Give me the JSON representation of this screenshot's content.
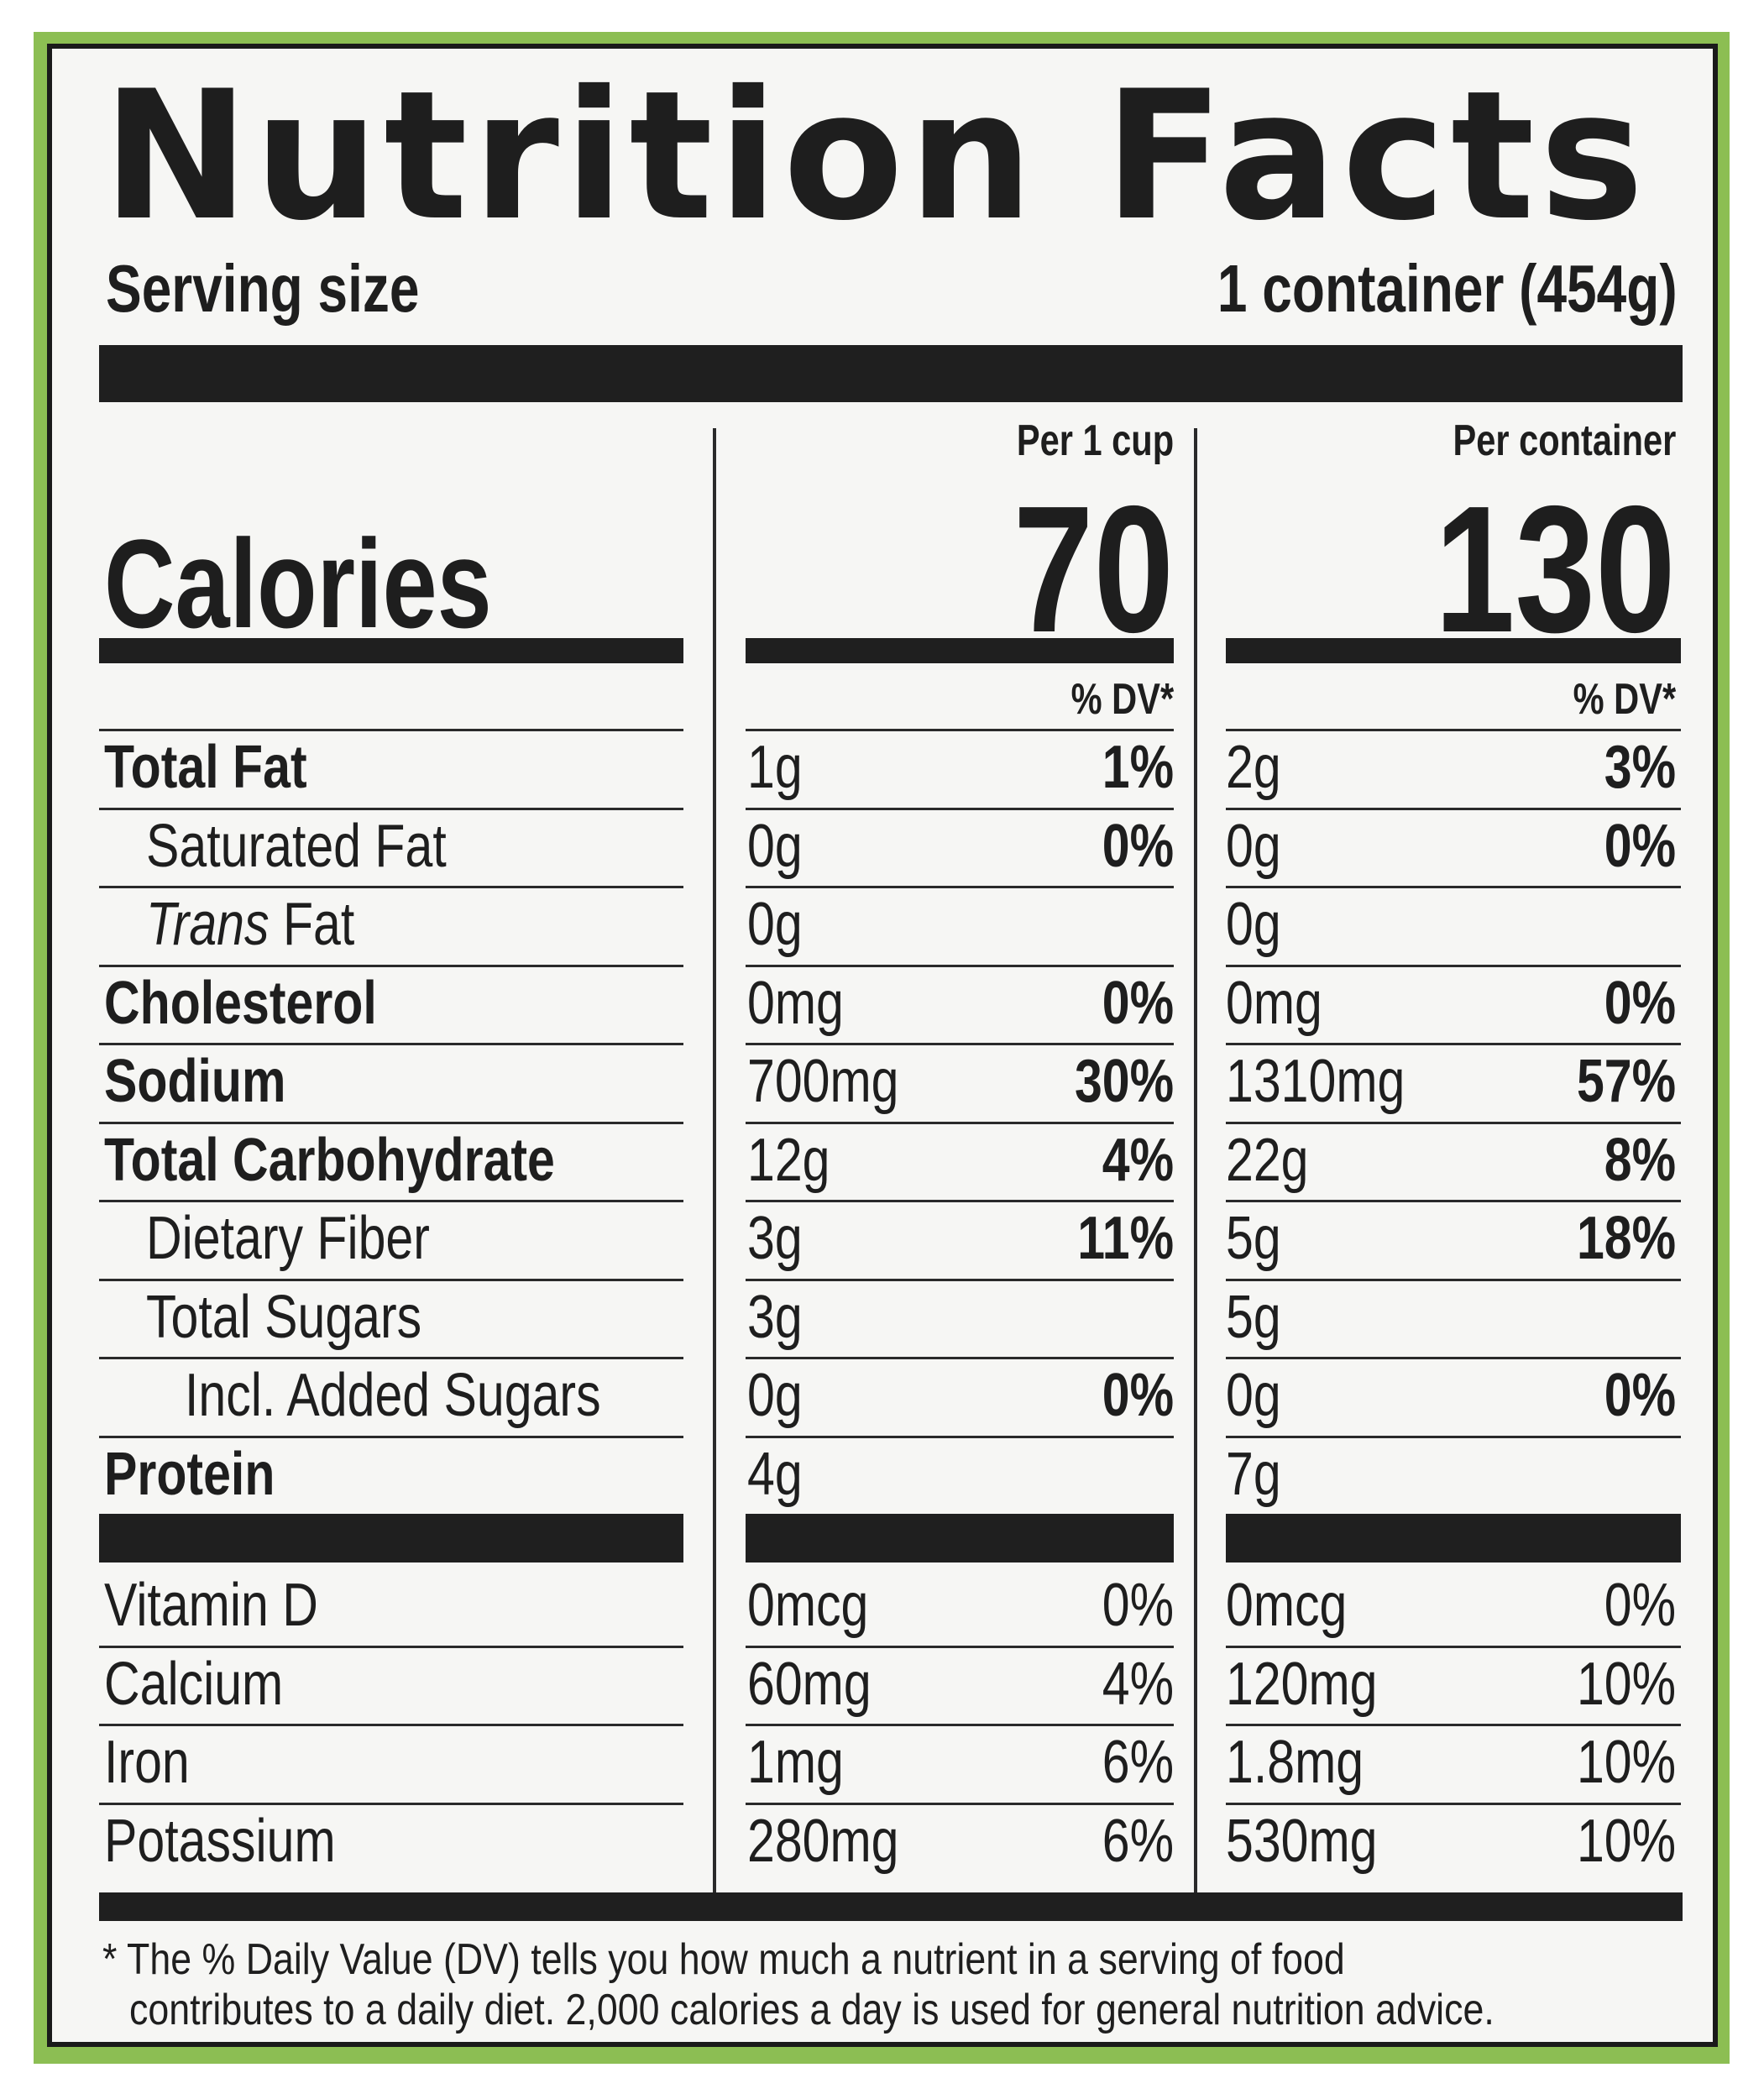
{
  "title": "Nutrition Facts",
  "serving": {
    "label": "Serving size",
    "value": "1 container (454g)"
  },
  "columns": {
    "per_cup": "Per 1 cup",
    "per_container": "Per container"
  },
  "calories": {
    "label": "Calories",
    "per_cup": "70",
    "per_container": "130"
  },
  "dv_header": "% DV*",
  "nutrients": [
    {
      "label": "Total Fat",
      "bold": true,
      "indent": 0,
      "cup_amt": "1g",
      "cup_dv": "1%",
      "cont_amt": "2g",
      "cont_dv": "3%"
    },
    {
      "label": "Saturated Fat",
      "bold": false,
      "indent": 1,
      "cup_amt": "0g",
      "cup_dv": "0%",
      "cont_amt": "0g",
      "cont_dv": "0%"
    },
    {
      "label": "Fat",
      "prefix_italic": "Trans",
      "bold": false,
      "indent": 1,
      "cup_amt": "0g",
      "cup_dv": "",
      "cont_amt": "0g",
      "cont_dv": ""
    },
    {
      "label": "Cholesterol",
      "bold": true,
      "indent": 0,
      "cup_amt": "0mg",
      "cup_dv": "0%",
      "cont_amt": "0mg",
      "cont_dv": "0%"
    },
    {
      "label": "Sodium",
      "bold": true,
      "indent": 0,
      "cup_amt": "700mg",
      "cup_dv": "30%",
      "cont_amt": "1310mg",
      "cont_dv": "57%"
    },
    {
      "label": "Total Carbohydrate",
      "bold": true,
      "indent": 0,
      "cup_amt": "12g",
      "cup_dv": "4%",
      "cont_amt": "22g",
      "cont_dv": "8%"
    },
    {
      "label": "Dietary Fiber",
      "bold": false,
      "indent": 1,
      "cup_amt": "3g",
      "cup_dv": "11%",
      "cont_amt": "5g",
      "cont_dv": "18%"
    },
    {
      "label": "Total Sugars",
      "bold": false,
      "indent": 1,
      "cup_amt": "3g",
      "cup_dv": "",
      "cont_amt": "5g",
      "cont_dv": ""
    },
    {
      "label": "Incl. Added Sugars",
      "bold": false,
      "indent": 2,
      "cup_amt": "0g",
      "cup_dv": "0%",
      "cont_amt": "0g",
      "cont_dv": "0%"
    },
    {
      "label": "Protein",
      "bold": true,
      "indent": 0,
      "cup_amt": "4g",
      "cup_dv": "",
      "cont_amt": "7g",
      "cont_dv": ""
    }
  ],
  "vitamins": [
    {
      "label": "Vitamin D",
      "cup_amt": "0mcg",
      "cup_dv": "0%",
      "cont_amt": "0mcg",
      "cont_dv": "0%"
    },
    {
      "label": "Calcium",
      "cup_amt": "60mg",
      "cup_dv": "4%",
      "cont_amt": "120mg",
      "cont_dv": "10%"
    },
    {
      "label": "Iron",
      "cup_amt": "1mg",
      "cup_dv": "6%",
      "cont_amt": "1.8mg",
      "cont_dv": "10%"
    },
    {
      "label": "Potassium",
      "cup_amt": "280mg",
      "cup_dv": "6%",
      "cont_amt": "530mg",
      "cont_dv": "10%"
    }
  ],
  "footnote": {
    "line1": "* The % Daily Value (DV) tells you how much a nutrient in a serving of food",
    "line2": "contributes to a daily diet. 2,000 calories a day is used for general nutrition advice."
  }
}
